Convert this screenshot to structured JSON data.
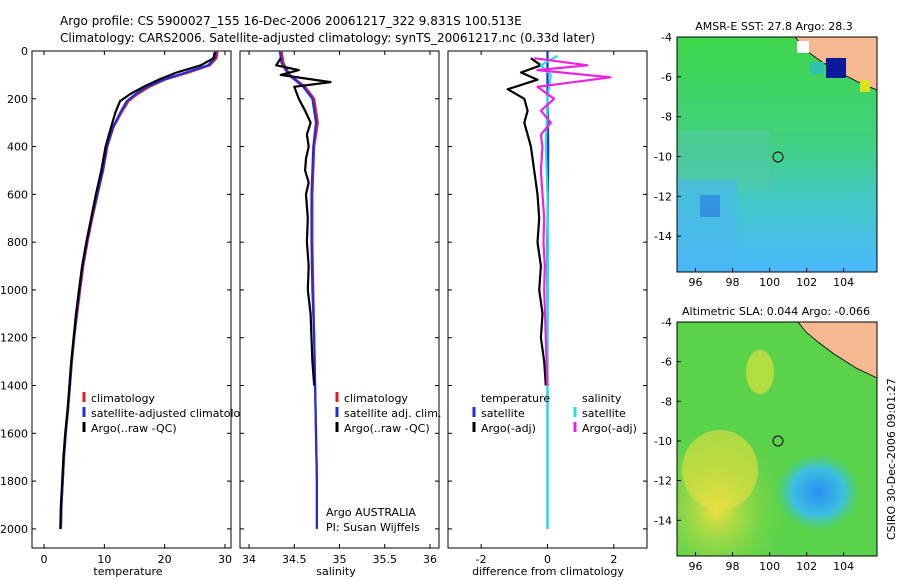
{
  "header": {
    "line1": "Argo profile: CS 5900027_155 16-Dec-2006 20061217_322 9.831S 100.513E",
    "line2": "Climatology: CARS2006. Satellite-adjusted climatology: synTS_20061217.nc (0.33d later)"
  },
  "colors": {
    "climatology": "#e02020",
    "satellite": "#1a2ee6",
    "argo": "#000000",
    "sat_salinity": "#22e0e6",
    "argo_adj_salinity": "#f020e0"
  },
  "chart_data": [
    {
      "id": "temperature",
      "type": "line",
      "xlabel": "temperature",
      "ylabel": "",
      "xlim": [
        -2,
        31
      ],
      "ylim": [
        2080,
        0
      ],
      "xticks": [
        0,
        10,
        20,
        30
      ],
      "yticks": [
        0,
        200,
        400,
        600,
        800,
        1000,
        1200,
        1400,
        1600,
        1800,
        2000
      ],
      "legend": [
        "climatology",
        "satellite-adjusted climatology",
        "Argo(..raw -QC)"
      ],
      "series": [
        {
          "name": "climatology",
          "color": "#e02020",
          "points": [
            [
              28.8,
              0
            ],
            [
              28.6,
              30
            ],
            [
              27.5,
              60
            ],
            [
              24,
              90
            ],
            [
              20,
              120
            ],
            [
              17.5,
              150
            ],
            [
              15.5,
              180
            ],
            [
              14,
              210
            ],
            [
              12.8,
              260
            ],
            [
              11.5,
              320
            ],
            [
              10.5,
              400
            ],
            [
              9.8,
              500
            ],
            [
              8.9,
              600
            ],
            [
              8,
              700
            ],
            [
              7.2,
              800
            ],
            [
              6.5,
              900
            ],
            [
              6,
              1000
            ],
            [
              5.5,
              1100
            ],
            [
              5,
              1200
            ],
            [
              4.6,
              1300
            ],
            [
              4.3,
              1400
            ],
            [
              4,
              1500
            ],
            [
              3.6,
              1600
            ],
            [
              3.3,
              1700
            ],
            [
              3.1,
              1800
            ],
            [
              2.9,
              1900
            ],
            [
              2.8,
              2000
            ]
          ]
        },
        {
          "name": "satellite-adjusted climatology",
          "color": "#1a2ee6",
          "points": [
            [
              28.5,
              0
            ],
            [
              28.3,
              30
            ],
            [
              27.2,
              60
            ],
            [
              23.5,
              90
            ],
            [
              19.8,
              120
            ],
            [
              17,
              150
            ],
            [
              15.2,
              180
            ],
            [
              13.7,
              210
            ],
            [
              12.6,
              260
            ],
            [
              11.4,
              320
            ],
            [
              10.4,
              400
            ],
            [
              9.7,
              500
            ],
            [
              8.8,
              600
            ],
            [
              7.9,
              700
            ],
            [
              7.1,
              800
            ],
            [
              6.4,
              900
            ],
            [
              5.9,
              1000
            ],
            [
              5.4,
              1100
            ],
            [
              5,
              1200
            ],
            [
              4.6,
              1300
            ],
            [
              4.3,
              1400
            ],
            [
              3.9,
              1500
            ],
            [
              3.6,
              1600
            ],
            [
              3.3,
              1700
            ],
            [
              3.1,
              1800
            ],
            [
              2.9,
              1900
            ],
            [
              2.8,
              2000
            ]
          ]
        },
        {
          "name": "Argo(..raw -QC)",
          "color": "#000000",
          "points": [
            [
              28.3,
              5
            ],
            [
              28.1,
              30
            ],
            [
              26,
              60
            ],
            [
              22,
              90
            ],
            [
              19,
              120
            ],
            [
              16.5,
              150
            ],
            [
              14.3,
              180
            ],
            [
              12.6,
              210
            ],
            [
              11.8,
              260
            ],
            [
              11.1,
              320
            ],
            [
              10.2,
              400
            ],
            [
              9.5,
              500
            ],
            [
              8.6,
              600
            ],
            [
              7.8,
              700
            ],
            [
              7,
              800
            ],
            [
              6.3,
              900
            ],
            [
              5.8,
              1000
            ],
            [
              5.3,
              1100
            ],
            [
              4.9,
              1200
            ],
            [
              4.5,
              1300
            ],
            [
              4.2,
              1400
            ],
            [
              3.9,
              1500
            ],
            [
              3.5,
              1600
            ],
            [
              3.2,
              1700
            ],
            [
              3,
              1800
            ],
            [
              2.8,
              1900
            ],
            [
              2.7,
              2000
            ]
          ]
        }
      ]
    },
    {
      "id": "salinity",
      "type": "line",
      "xlabel": "salinity",
      "xlim": [
        33.9,
        36.1
      ],
      "ylim": [
        2080,
        0
      ],
      "xticks": [
        34,
        34.5,
        35,
        35.5,
        36
      ],
      "legend": [
        "climatology",
        "satellite adj. clim.",
        "Argo(..raw -QC)"
      ],
      "annotation": [
        "Argo AUSTRALIA",
        "PI: Susan Wijffels"
      ],
      "series": [
        {
          "name": "climatology",
          "color": "#e02020",
          "points": [
            [
              34.36,
              0
            ],
            [
              34.38,
              50
            ],
            [
              34.45,
              100
            ],
            [
              34.62,
              150
            ],
            [
              34.72,
              200
            ],
            [
              34.76,
              300
            ],
            [
              34.72,
              400
            ],
            [
              34.71,
              500
            ],
            [
              34.7,
              600
            ],
            [
              34.7,
              700
            ],
            [
              34.7,
              800
            ],
            [
              34.71,
              1000
            ],
            [
              34.72,
              1200
            ],
            [
              34.73,
              1400
            ],
            [
              34.74,
              1600
            ],
            [
              34.75,
              1800
            ],
            [
              34.75,
              2000
            ]
          ]
        },
        {
          "name": "satellite adj. clim.",
          "color": "#1a2ee6",
          "points": [
            [
              34.34,
              0
            ],
            [
              34.36,
              50
            ],
            [
              34.44,
              100
            ],
            [
              34.6,
              150
            ],
            [
              34.7,
              200
            ],
            [
              34.74,
              300
            ],
            [
              34.71,
              400
            ],
            [
              34.7,
              500
            ],
            [
              34.69,
              600
            ],
            [
              34.69,
              700
            ],
            [
              34.69,
              800
            ],
            [
              34.7,
              1000
            ],
            [
              34.72,
              1200
            ],
            [
              34.73,
              1400
            ],
            [
              34.74,
              1600
            ],
            [
              34.75,
              1800
            ],
            [
              34.75,
              2000
            ]
          ]
        },
        {
          "name": "Argo(..raw -QC)",
          "color": "#000000",
          "points": [
            [
              34.35,
              30
            ],
            [
              34.3,
              60
            ],
            [
              34.55,
              80
            ],
            [
              34.35,
              100
            ],
            [
              34.9,
              130
            ],
            [
              34.5,
              150
            ],
            [
              34.55,
              200
            ],
            [
              34.62,
              250
            ],
            [
              34.68,
              300
            ],
            [
              34.64,
              350
            ],
            [
              34.66,
              400
            ],
            [
              34.63,
              450
            ],
            [
              34.62,
              500
            ],
            [
              34.66,
              550
            ],
            [
              34.63,
              600
            ],
            [
              34.65,
              700
            ],
            [
              34.64,
              800
            ],
            [
              34.66,
              900
            ],
            [
              34.65,
              1000
            ],
            [
              34.68,
              1100
            ],
            [
              34.69,
              1200
            ],
            [
              34.7,
              1300
            ],
            [
              34.72,
              1400
            ]
          ]
        }
      ]
    },
    {
      "id": "difference",
      "type": "line",
      "xlabel": "difference from climatology",
      "xlim": [
        -3,
        3
      ],
      "ylim": [
        2080,
        0
      ],
      "xticks": [
        -2,
        0,
        2
      ],
      "legend": [
        "temperature",
        "satellite",
        "Argo(-adj)",
        "salinity",
        "satellite",
        "Argo(-adj)"
      ],
      "series": [
        {
          "name": "temperature satellite",
          "color": "#1a2ee6",
          "points": [
            [
              0,
              0
            ],
            [
              0,
              200
            ],
            [
              0.02,
              400
            ],
            [
              0,
              800
            ],
            [
              0,
              1200
            ],
            [
              0,
              1600
            ],
            [
              0,
              2000
            ]
          ]
        },
        {
          "name": "temperature Argo(-adj)",
          "color": "#000000",
          "points": [
            [
              -0.5,
              30
            ],
            [
              -0.2,
              60
            ],
            [
              -0.8,
              90
            ],
            [
              -0.3,
              120
            ],
            [
              -1.2,
              160
            ],
            [
              -0.7,
              200
            ],
            [
              -0.6,
              250
            ],
            [
              -0.7,
              300
            ],
            [
              -0.6,
              350
            ],
            [
              -0.5,
              400
            ],
            [
              -0.4,
              500
            ],
            [
              -0.3,
              600
            ],
            [
              -0.25,
              700
            ],
            [
              -0.3,
              800
            ],
            [
              -0.2,
              900
            ],
            [
              -0.25,
              1000
            ],
            [
              -0.15,
              1100
            ],
            [
              -0.2,
              1200
            ],
            [
              -0.1,
              1300
            ],
            [
              -0.05,
              1400
            ]
          ]
        },
        {
          "name": "salinity satellite",
          "color": "#22e0e6",
          "points": [
            [
              0.3,
              20
            ],
            [
              -0.2,
              60
            ],
            [
              0.1,
              100
            ],
            [
              0,
              200
            ],
            [
              -0.05,
              400
            ],
            [
              0,
              600
            ],
            [
              0.02,
              800
            ],
            [
              0,
              1200
            ],
            [
              0,
              1600
            ],
            [
              0,
              2000
            ]
          ]
        },
        {
          "name": "salinity Argo(-adj)",
          "color": "#f020e0",
          "points": [
            [
              -0.4,
              30
            ],
            [
              1.2,
              60
            ],
            [
              -0.3,
              80
            ],
            [
              1.9,
              110
            ],
            [
              -0.3,
              150
            ],
            [
              0.2,
              200
            ],
            [
              -0.2,
              250
            ],
            [
              0.1,
              300
            ],
            [
              -0.2,
              350
            ],
            [
              -0.15,
              400
            ],
            [
              -0.2,
              500
            ],
            [
              -0.15,
              600
            ],
            [
              -0.1,
              700
            ],
            [
              -0.12,
              800
            ],
            [
              -0.08,
              900
            ],
            [
              -0.1,
              1000
            ],
            [
              -0.05,
              1200
            ],
            [
              -0.03,
              1300
            ],
            [
              0,
              1400
            ]
          ]
        }
      ]
    },
    {
      "id": "sst-map",
      "type": "heatmap",
      "title": "AMSR-E SST: 27.8 Argo: 28.3",
      "xlim": [
        95,
        105.8
      ],
      "ylim": [
        -15.8,
        -4
      ],
      "xticks": [
        96,
        98,
        100,
        102,
        104
      ],
      "yticks": [
        -4,
        -6,
        -8,
        -10,
        -12,
        -14
      ],
      "marker": [
        100.5,
        -9.8
      ]
    },
    {
      "id": "sla-map",
      "type": "heatmap",
      "title": "Altimetric SLA: 0.044 Argo: -0.066",
      "xlim": [
        95,
        105.8
      ],
      "ylim": [
        -15.8,
        -4
      ],
      "xticks": [
        96,
        98,
        100,
        102,
        104
      ],
      "yticks": [
        -4,
        -6,
        -8,
        -10,
        -12,
        -14
      ],
      "marker": [
        100.5,
        -9.8
      ]
    }
  ],
  "footer": {
    "credit": "CSIRO 30-Dec-2006 09:01:27"
  },
  "labels": {
    "p1_leg1": "climatology",
    "p1_leg2": "satellite-adjusted climatology",
    "p1_leg3": "Argo(..raw -QC)",
    "p2_leg1": "climatology",
    "p2_leg2": "satellite adj. clim.",
    "p2_leg3": "Argo(..raw -QC)",
    "p2_note1": "Argo AUSTRALIA",
    "p2_note2": "PI: Susan Wijffels",
    "p3_h1": "temperature",
    "p3_h2": "salinity",
    "p3_l1": "satellite",
    "p3_l2": "Argo(-adj)",
    "p3_l3": "satellite",
    "p3_l4": "Argo(-adj)"
  }
}
